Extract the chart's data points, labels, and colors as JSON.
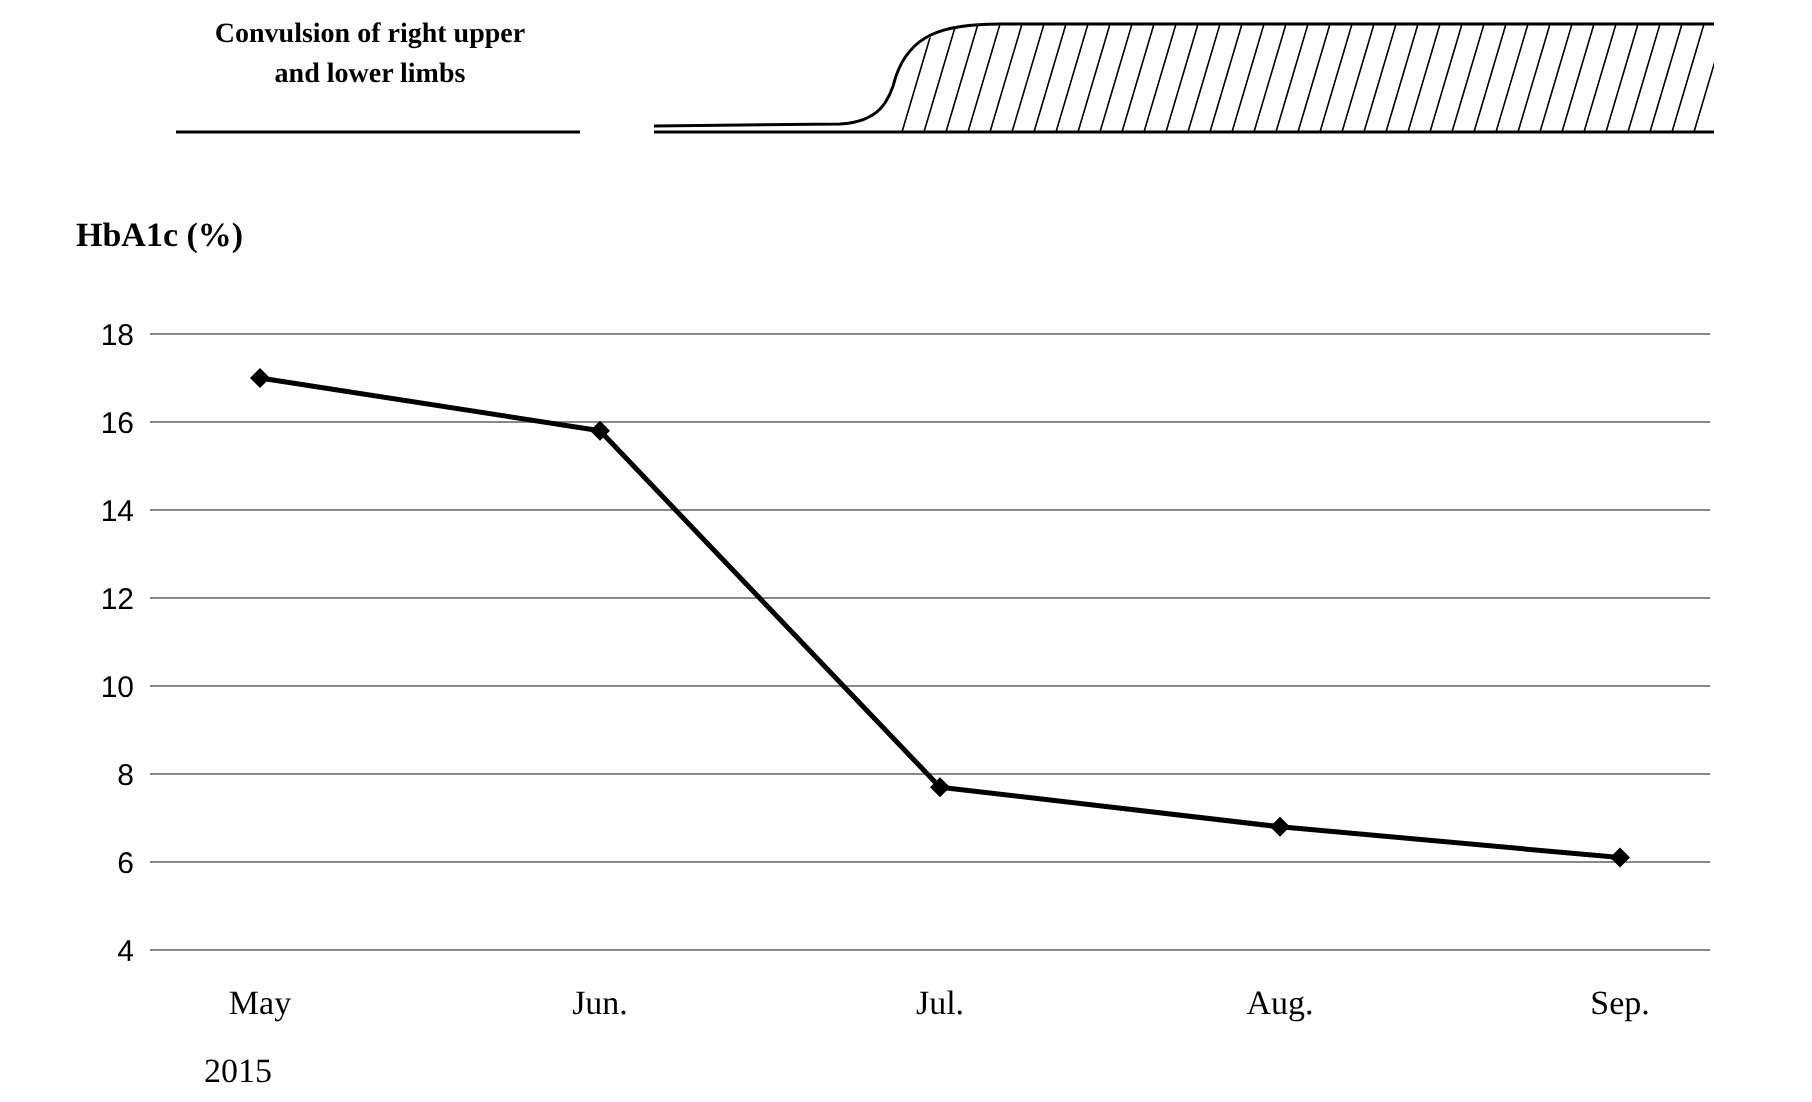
{
  "chart_data": {
    "type": "line",
    "ylabel": "HbA1c (%)",
    "annotations": [
      "Convulsion of right upper and lower limbs",
      "2015"
    ],
    "categories": [
      "May",
      "Jun.",
      "Jul.",
      "Aug.",
      "Sep."
    ],
    "series": [
      {
        "color": "#000000",
        "values": [
          17,
          15.8,
          7.7,
          6.8,
          6.1
        ]
      }
    ],
    "ylim": [
      4,
      18
    ],
    "yticks": [
      4,
      6,
      8,
      10,
      12,
      14,
      16,
      18
    ],
    "grid": "y",
    "marker": "diamond",
    "line_style": "solid"
  }
}
